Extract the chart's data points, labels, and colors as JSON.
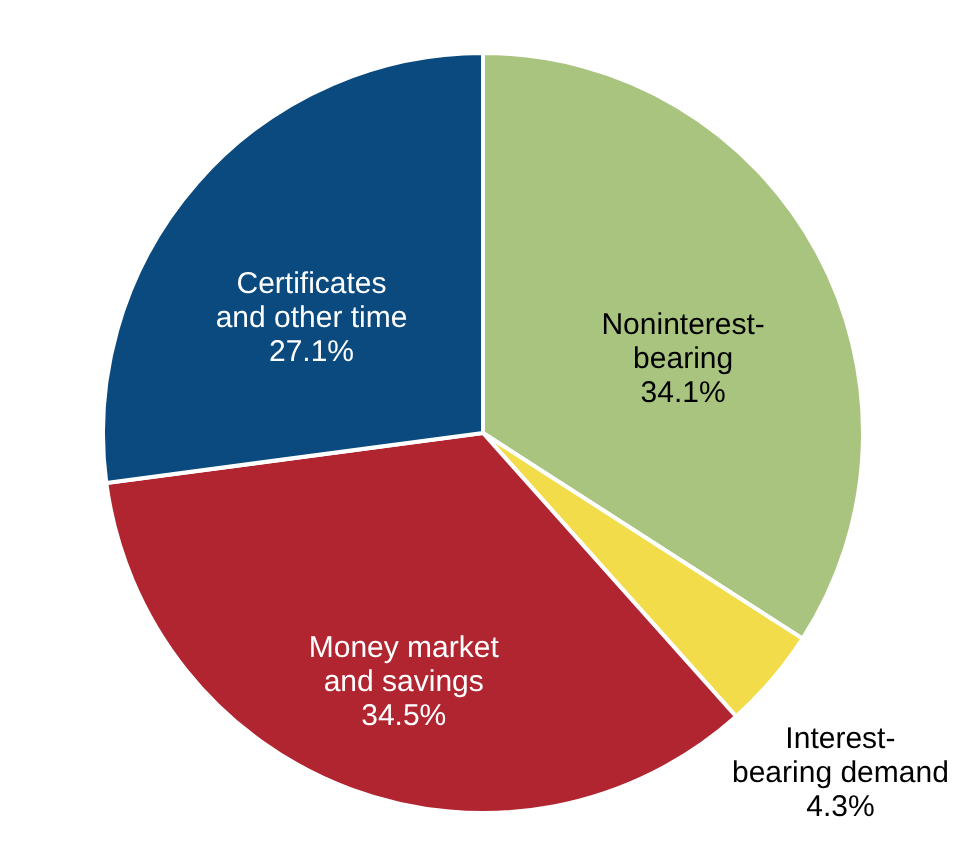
{
  "chart_data": {
    "type": "pie",
    "categories": [
      "Noninterest-bearing",
      "Interest-bearing demand",
      "Money market and savings",
      "Certificates and other time"
    ],
    "values": [
      34.1,
      4.3,
      34.5,
      27.1
    ],
    "colors": [
      "#a9c47f",
      "#f2dc4a",
      "#b0252f",
      "#0a4a7f"
    ],
    "value_labels": [
      "34.1%",
      "4.3%",
      "34.5%",
      "27.1%"
    ],
    "legend": false
  }
}
